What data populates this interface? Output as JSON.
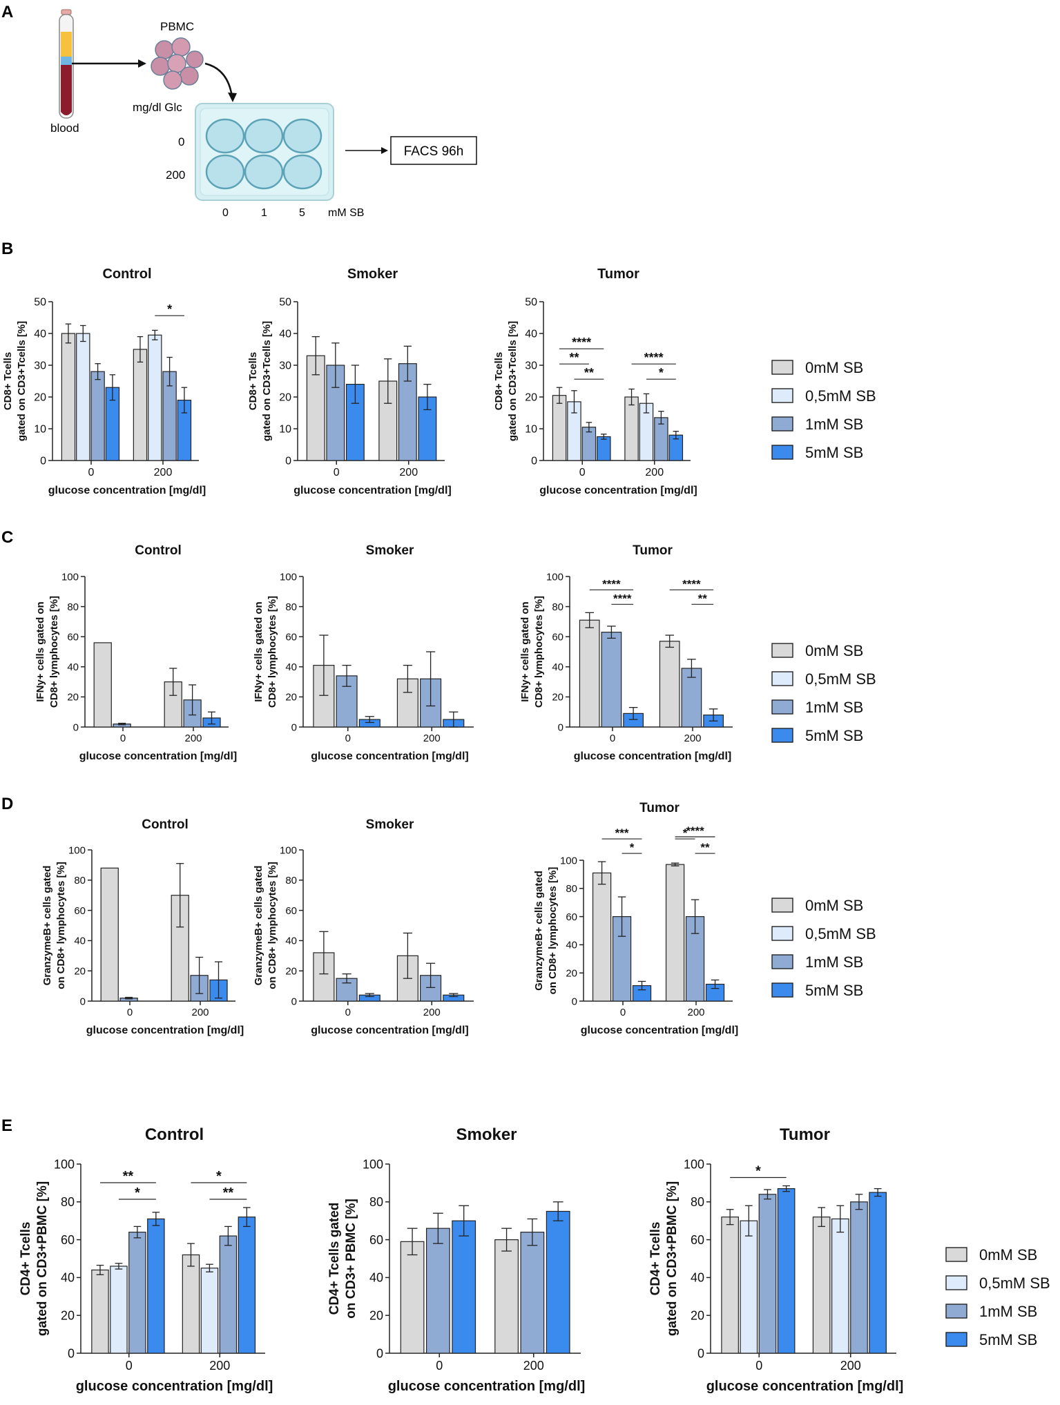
{
  "colors": {
    "c0": "#d9d9d9",
    "c05": "#deebfb",
    "c1": "#8fabd4",
    "c5": "#3b8bef",
    "axis": "#222222",
    "text": "#111111"
  },
  "panel_letters": {
    "A": "A",
    "B": "B",
    "C": "C",
    "D": "D",
    "E": "E"
  },
  "schematic": {
    "blood": "blood",
    "pbmc": "PBMC",
    "glc_label": "mg/dl Glc",
    "row0": "0",
    "row200": "200",
    "col0": "0",
    "col1": "1",
    "col5": "5",
    "sb_label": "mM SB",
    "facs": "FACS 96h"
  },
  "legends": {
    "four": [
      "0mM SB",
      "0,5mM SB",
      "1mM SB",
      "5mM SB"
    ]
  },
  "chart_data": [
    {
      "id": "B-control",
      "type": "bar",
      "title": "Control",
      "xlabel": "glucose concentration [mg/dl]",
      "ylabel": [
        "CD8+ Tcells",
        "gated on CD3+Tcells [%]"
      ],
      "ylim": [
        0,
        50
      ],
      "ticks": [
        0,
        10,
        20,
        30,
        40,
        50
      ],
      "categories": [
        "0",
        "200"
      ],
      "series": [
        {
          "name": "0mM SB",
          "values": [
            40,
            35
          ],
          "err": [
            3,
            4
          ]
        },
        {
          "name": "0,5mM SB",
          "values": [
            40,
            39.5
          ],
          "err": [
            2.5,
            1.5
          ]
        },
        {
          "name": "1mM SB",
          "values": [
            28,
            28
          ],
          "err": [
            2.5,
            4.5
          ]
        },
        {
          "name": "5mM SB",
          "values": [
            23,
            19
          ],
          "err": [
            4,
            4
          ]
        }
      ],
      "sig": [
        {
          "text": "*",
          "from": [
            1,
            1
          ],
          "to": [
            1,
            3
          ],
          "level": 0
        }
      ]
    },
    {
      "id": "B-smoker",
      "type": "bar",
      "title": "Smoker",
      "xlabel": "glucose concentration [mg/dl]",
      "ylabel": [
        "CD8+ Tcells",
        "gated on CD3+Tcells [%]"
      ],
      "ylim": [
        0,
        50
      ],
      "ticks": [
        0,
        10,
        20,
        30,
        40,
        50
      ],
      "categories": [
        "0",
        "200"
      ],
      "series": [
        {
          "name": "0mM SB",
          "values": [
            33,
            25
          ],
          "err": [
            6,
            7
          ]
        },
        {
          "name": "1mM SB",
          "values": [
            30,
            30.5
          ],
          "err": [
            7,
            5.5
          ]
        },
        {
          "name": "5mM SB",
          "values": [
            24,
            20
          ],
          "err": [
            6,
            4
          ]
        }
      ],
      "sig": []
    },
    {
      "id": "B-tumor",
      "type": "bar",
      "title": "Tumor",
      "xlabel": "glucose concentration [mg/dl]",
      "ylabel": [
        "CD8+ Tcells",
        "gated on CD3+Tcells [%]"
      ],
      "ylim": [
        0,
        50
      ],
      "ticks": [
        0,
        10,
        20,
        30,
        40,
        50
      ],
      "categories": [
        "0",
        "200"
      ],
      "series": [
        {
          "name": "0mM SB",
          "values": [
            20.5,
            20
          ],
          "err": [
            2.5,
            2.5
          ]
        },
        {
          "name": "0,5mM SB",
          "values": [
            18.5,
            18
          ],
          "err": [
            3.5,
            3
          ]
        },
        {
          "name": "1mM SB",
          "values": [
            10.5,
            13.5
          ],
          "err": [
            1.5,
            2
          ]
        },
        {
          "name": "5mM SB",
          "values": [
            7.5,
            8
          ],
          "err": [
            0.8,
            1.2
          ]
        }
      ],
      "sig": [
        {
          "text": "****",
          "from": [
            0,
            0
          ],
          "to": [
            0,
            3
          ],
          "level": 2
        },
        {
          "text": "**",
          "from": [
            0,
            0
          ],
          "to": [
            0,
            2
          ],
          "level": 1
        },
        {
          "text": "**",
          "from": [
            0,
            1
          ],
          "to": [
            0,
            3
          ],
          "level": 0
        },
        {
          "text": "****",
          "from": [
            1,
            0
          ],
          "to": [
            1,
            3
          ],
          "level": 1
        },
        {
          "text": "*",
          "from": [
            1,
            1
          ],
          "to": [
            1,
            3
          ],
          "level": 0
        }
      ]
    },
    {
      "id": "C-control",
      "type": "bar",
      "title": "Control",
      "xlabel": "glucose concentration [mg/dl]",
      "ylabel": [
        "IFNy+ cells gated on",
        "CD8+ lymphocytes [%]"
      ],
      "ylim": [
        0,
        100
      ],
      "ticks": [
        0,
        20,
        40,
        60,
        80,
        100
      ],
      "categories": [
        "0",
        "200"
      ],
      "series": [
        {
          "name": "0mM SB",
          "values": [
            56,
            30
          ],
          "err": [
            0,
            9
          ]
        },
        {
          "name": "1mM SB",
          "values": [
            2,
            18
          ],
          "err": [
            0.5,
            10
          ]
        },
        {
          "name": "5mM SB",
          "values": [
            0,
            6
          ],
          "err": [
            0,
            4
          ]
        }
      ],
      "sig": []
    },
    {
      "id": "C-smoker",
      "type": "bar",
      "title": "Smoker",
      "xlabel": "glucose concentration [mg/dl]",
      "ylabel": [
        "IFNy+ cells gated on",
        "CD8+ lymphocytes [%]"
      ],
      "ylim": [
        0,
        100
      ],
      "ticks": [
        0,
        20,
        40,
        60,
        80,
        100
      ],
      "categories": [
        "0",
        "200"
      ],
      "series": [
        {
          "name": "0mM SB",
          "values": [
            41,
            32
          ],
          "err": [
            20,
            9
          ]
        },
        {
          "name": "1mM SB",
          "values": [
            34,
            32
          ],
          "err": [
            7,
            18
          ]
        },
        {
          "name": "5mM SB",
          "values": [
            5,
            5
          ],
          "err": [
            2,
            5
          ]
        }
      ],
      "sig": []
    },
    {
      "id": "C-tumor",
      "type": "bar",
      "title": "Tumor",
      "xlabel": "glucose concentration [mg/dl]",
      "ylabel": [
        "IFNy+ cells gated on",
        "CD8+ lymphocytes [%]"
      ],
      "ylim": [
        0,
        100
      ],
      "ticks": [
        0,
        20,
        40,
        60,
        80,
        100
      ],
      "categories": [
        "0",
        "200"
      ],
      "series": [
        {
          "name": "0mM SB",
          "values": [
            71,
            57
          ],
          "err": [
            5,
            4
          ]
        },
        {
          "name": "1mM SB",
          "values": [
            63,
            39
          ],
          "err": [
            4,
            6
          ]
        },
        {
          "name": "5mM SB",
          "values": [
            9,
            8
          ],
          "err": [
            4,
            4
          ]
        }
      ],
      "sig": [
        {
          "text": "****",
          "from": [
            0,
            0
          ],
          "to": [
            0,
            2
          ],
          "level": 1
        },
        {
          "text": "****",
          "from": [
            0,
            1
          ],
          "to": [
            0,
            2
          ],
          "level": 0
        },
        {
          "text": "****",
          "from": [
            1,
            0
          ],
          "to": [
            1,
            2
          ],
          "level": 1
        },
        {
          "text": "**",
          "from": [
            1,
            1
          ],
          "to": [
            1,
            2
          ],
          "level": 0
        }
      ]
    },
    {
      "id": "D-control",
      "type": "bar",
      "title": "Control",
      "xlabel": "glucose concentration [mg/dl]",
      "ylabel": [
        "GranzymeB+ cells gated",
        "on CD8+ lymphocytes [%]"
      ],
      "ylim": [
        0,
        100
      ],
      "ticks": [
        0,
        20,
        40,
        60,
        80,
        100
      ],
      "categories": [
        "0",
        "200"
      ],
      "series": [
        {
          "name": "0mM SB",
          "values": [
            88,
            70
          ],
          "err": [
            0,
            21
          ]
        },
        {
          "name": "1mM SB",
          "values": [
            2,
            17
          ],
          "err": [
            0.5,
            12
          ]
        },
        {
          "name": "5mM SB",
          "values": [
            0,
            14
          ],
          "err": [
            0,
            12
          ]
        }
      ],
      "sig": []
    },
    {
      "id": "D-smoker",
      "type": "bar",
      "title": "Smoker",
      "xlabel": "glucose concentration [mg/dl]",
      "ylabel": [
        "GranzymeB+ cells gated",
        "on CD8+ lymphocytes [%]"
      ],
      "ylim": [
        0,
        100
      ],
      "ticks": [
        0,
        20,
        40,
        60,
        80,
        100
      ],
      "categories": [
        "0",
        "200"
      ],
      "series": [
        {
          "name": "0mM SB",
          "values": [
            32,
            30
          ],
          "err": [
            14,
            15
          ]
        },
        {
          "name": "1mM SB",
          "values": [
            15,
            17
          ],
          "err": [
            3,
            8
          ]
        },
        {
          "name": "5mM SB",
          "values": [
            4,
            4
          ],
          "err": [
            1,
            1
          ]
        }
      ],
      "sig": []
    },
    {
      "id": "D-tumor",
      "type": "bar",
      "title": "Tumor",
      "xlabel": "glucose concentration [mg/dl]",
      "ylabel": [
        "GranzymeB+ cells gated",
        "on CD8+ lymphocytes [%]"
      ],
      "ylim": [
        0,
        100
      ],
      "ticks": [
        0,
        20,
        40,
        60,
        80,
        100
      ],
      "categories": [
        "0",
        "200"
      ],
      "series": [
        {
          "name": "0mM SB",
          "values": [
            91,
            97
          ],
          "err": [
            8,
            1
          ]
        },
        {
          "name": "1mM SB",
          "values": [
            60,
            60
          ],
          "err": [
            14,
            12
          ]
        },
        {
          "name": "5mM SB",
          "values": [
            11,
            12
          ],
          "err": [
            3,
            3
          ]
        }
      ],
      "sig": [
        {
          "text": "***",
          "from": [
            0,
            0
          ],
          "to": [
            0,
            2
          ],
          "level": 1
        },
        {
          "text": "*",
          "from": [
            0,
            1
          ],
          "to": [
            0,
            2
          ],
          "level": 0
        },
        {
          "text": "****",
          "from": [
            1,
            0
          ],
          "to": [
            1,
            2
          ],
          "level": 2
        },
        {
          "text": "*",
          "from": [
            1,
            0
          ],
          "to": [
            1,
            1
          ],
          "level": 1
        },
        {
          "text": "**",
          "from": [
            1,
            1
          ],
          "to": [
            1,
            2
          ],
          "level": 0
        }
      ]
    },
    {
      "id": "E-control",
      "type": "bar",
      "title": "Control",
      "xlabel": "glucose concentration [mg/dl]",
      "ylabel": [
        "CD4+ Tcells",
        "gated on CD3+PBMC [%]"
      ],
      "ylim": [
        0,
        100
      ],
      "ticks": [
        0,
        20,
        40,
        60,
        80,
        100
      ],
      "categories": [
        "0",
        "200"
      ],
      "series": [
        {
          "name": "0mM SB",
          "values": [
            44,
            52
          ],
          "err": [
            2.5,
            6
          ]
        },
        {
          "name": "0,5mM SB",
          "values": [
            46,
            45
          ],
          "err": [
            1.5,
            2
          ]
        },
        {
          "name": "1mM SB",
          "values": [
            64,
            62
          ],
          "err": [
            3,
            5
          ]
        },
        {
          "name": "5mM SB",
          "values": [
            71,
            72
          ],
          "err": [
            3.5,
            5
          ]
        }
      ],
      "sig": [
        {
          "text": "**",
          "from": [
            0,
            0
          ],
          "to": [
            0,
            3
          ],
          "level": 1
        },
        {
          "text": "*",
          "from": [
            0,
            1
          ],
          "to": [
            0,
            3
          ],
          "level": 0
        },
        {
          "text": "*",
          "from": [
            1,
            0
          ],
          "to": [
            1,
            3
          ],
          "level": 1
        },
        {
          "text": "**",
          "from": [
            1,
            1
          ],
          "to": [
            1,
            3
          ],
          "level": 0
        }
      ]
    },
    {
      "id": "E-smoker",
      "type": "bar",
      "title": "Smoker",
      "xlabel": "glucose concentration [mg/dl]",
      "ylabel": [
        "CD4+ Tcells gated",
        "on CD3+ PBMC [%]"
      ],
      "ylim": [
        0,
        100
      ],
      "ticks": [
        0,
        20,
        40,
        60,
        80,
        100
      ],
      "categories": [
        "0",
        "200"
      ],
      "series": [
        {
          "name": "0mM SB",
          "values": [
            59,
            60
          ],
          "err": [
            7,
            6
          ]
        },
        {
          "name": "1mM SB",
          "values": [
            66,
            64
          ],
          "err": [
            8,
            7
          ]
        },
        {
          "name": "5mM SB",
          "values": [
            70,
            75
          ],
          "err": [
            8,
            5
          ]
        }
      ],
      "sig": []
    },
    {
      "id": "E-tumor",
      "type": "bar",
      "title": "Tumor",
      "xlabel": "glucose concentration [mg/dl]",
      "ylabel": [
        "CD4+ Tcells",
        "gated on CD3+PBMC [%]"
      ],
      "ylim": [
        0,
        100
      ],
      "ticks": [
        0,
        20,
        40,
        60,
        80,
        100
      ],
      "categories": [
        "0",
        "200"
      ],
      "series": [
        {
          "name": "0mM SB",
          "values": [
            72,
            72
          ],
          "err": [
            4,
            5
          ]
        },
        {
          "name": "0,5mM SB",
          "values": [
            70,
            71
          ],
          "err": [
            8,
            7
          ]
        },
        {
          "name": "1mM SB",
          "values": [
            84,
            80
          ],
          "err": [
            2.5,
            4
          ]
        },
        {
          "name": "5mM SB",
          "values": [
            87,
            85
          ],
          "err": [
            1.5,
            2
          ]
        }
      ],
      "sig": [
        {
          "text": "*",
          "from": [
            0,
            0
          ],
          "to": [
            0,
            3
          ],
          "level": 0
        }
      ]
    }
  ]
}
